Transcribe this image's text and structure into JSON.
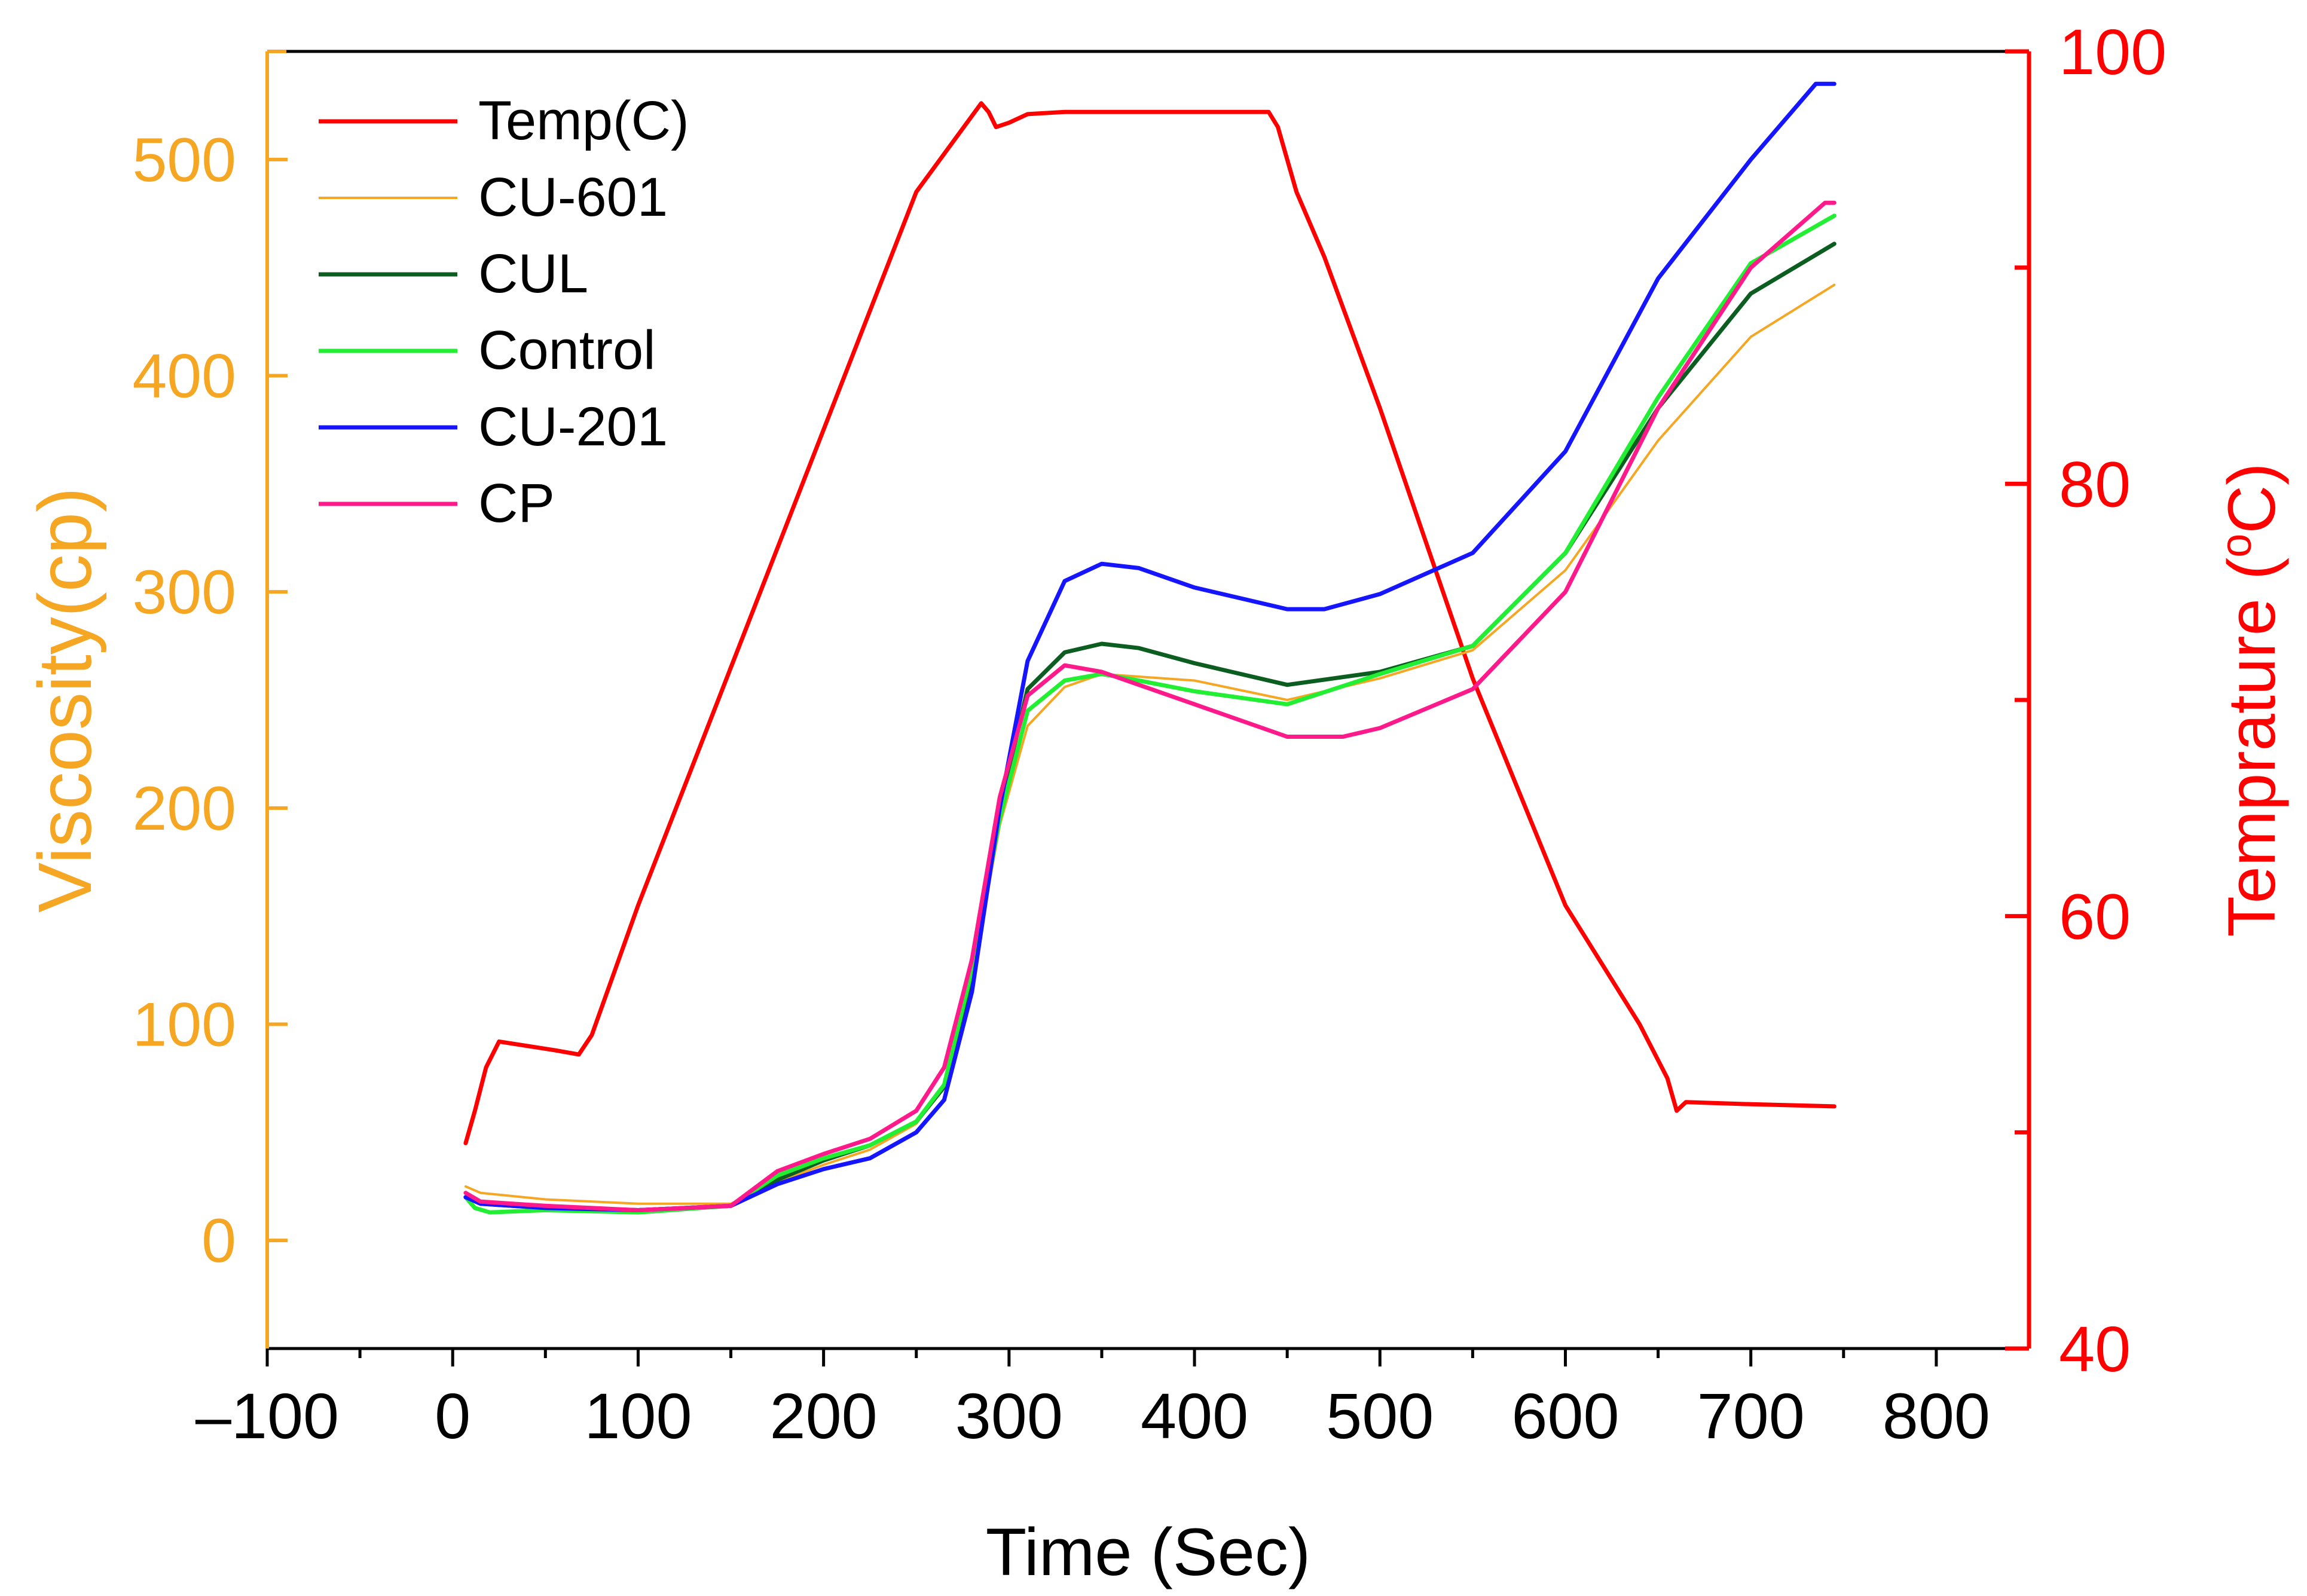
{
  "chart_data": {
    "type": "line",
    "title": "",
    "xlabel": "Time (Sec)",
    "ylabel_left": "Viscosity(cp)",
    "ylabel_right_prefix": "Temprature (",
    "ylabel_right_unit": "oC",
    "ylabel_right_suffix": ")",
    "xlim": [
      -100,
      850
    ],
    "ylim_left": [
      -50,
      550
    ],
    "ylim_right": [
      40,
      100
    ],
    "x_ticks": [
      -100,
      0,
      100,
      200,
      300,
      400,
      500,
      600,
      700,
      800
    ],
    "x_tick_labels": [
      "–100",
      "0",
      "100",
      "200",
      "300",
      "400",
      "500",
      "600",
      "700",
      "800"
    ],
    "y_left_ticks": [
      0,
      100,
      200,
      300,
      400,
      500
    ],
    "y_left_tick_labels": [
      "0",
      "100",
      "200",
      "300",
      "400",
      "500"
    ],
    "y_right_ticks": [
      40,
      60,
      80,
      100
    ],
    "y_right_tick_labels": [
      "40",
      "60",
      "80",
      "100"
    ],
    "legend_position": "top-left",
    "colors": {
      "left_axis": "#f5a623",
      "right_axis": "#ff0000",
      "frame": "#000000"
    },
    "series": [
      {
        "name": "Temp(C)",
        "axis": "right",
        "color": "#ff0000",
        "width": 7,
        "x": [
          7,
          12,
          18,
          25,
          40,
          55,
          68,
          75,
          100,
          150,
          200,
          250,
          285,
          289,
          293,
          300,
          310,
          330,
          370,
          420,
          440,
          445,
          455,
          470,
          500,
          550,
          600,
          640,
          655,
          660,
          665,
          700,
          745
        ],
        "y": [
          49.5,
          51,
          53,
          54.2,
          54,
          53.8,
          53.6,
          54.5,
          60.5,
          71.5,
          82.5,
          93.5,
          97.6,
          97.2,
          96.5,
          96.7,
          97.1,
          97.2,
          97.2,
          97.2,
          97.2,
          96.5,
          93.5,
          90.5,
          83.5,
          71,
          60.5,
          55,
          52.5,
          51,
          51.4,
          51.3,
          51.2
        ]
      },
      {
        "name": "CU-601",
        "axis": "left",
        "color": "#f5a623",
        "width": 4,
        "x": [
          7,
          15,
          50,
          100,
          150,
          175,
          200,
          225,
          250,
          265,
          280,
          295,
          310,
          330,
          350,
          400,
          450,
          500,
          550,
          600,
          650,
          700,
          745
        ],
        "y": [
          25,
          22,
          19,
          17,
          17,
          27,
          35,
          42,
          54,
          72,
          120,
          192,
          238,
          256,
          262,
          259,
          250,
          260,
          273,
          310,
          370,
          418,
          442
        ]
      },
      {
        "name": "CUL",
        "axis": "left",
        "color": "#0b5e1f",
        "width": 7,
        "x": [
          7,
          15,
          50,
          100,
          150,
          175,
          200,
          225,
          250,
          265,
          280,
          295,
          310,
          330,
          350,
          370,
          400,
          450,
          500,
          550,
          600,
          650,
          700,
          745
        ],
        "y": [
          20,
          17,
          15,
          14,
          16,
          28,
          37,
          44,
          55,
          71,
          120,
          200,
          255,
          272,
          276,
          274,
          267,
          257,
          263,
          275,
          318,
          385,
          438,
          461
        ]
      },
      {
        "name": "Control",
        "axis": "left",
        "color": "#22ee33",
        "width": 7,
        "x": [
          7,
          12,
          20,
          50,
          100,
          150,
          175,
          200,
          225,
          250,
          265,
          280,
          295,
          310,
          330,
          350,
          370,
          400,
          450,
          500,
          550,
          600,
          650,
          700,
          745
        ],
        "y": [
          20,
          15,
          13,
          14,
          13,
          16,
          30,
          38,
          44,
          55,
          72,
          125,
          195,
          245,
          259,
          262,
          259,
          254,
          248,
          262,
          275,
          318,
          390,
          452,
          474
        ]
      },
      {
        "name": "CU-201",
        "axis": "left",
        "color": "#1515ff",
        "width": 7,
        "x": [
          7,
          15,
          50,
          100,
          150,
          175,
          200,
          225,
          250,
          265,
          280,
          295,
          310,
          330,
          350,
          370,
          400,
          450,
          470,
          500,
          550,
          600,
          650,
          700,
          735,
          745
        ],
        "y": [
          20,
          17,
          15,
          14,
          16,
          26,
          33,
          38,
          50,
          65,
          115,
          200,
          268,
          305,
          313,
          311,
          302,
          292,
          292,
          299,
          318,
          365,
          445,
          500,
          535,
          535
        ]
      },
      {
        "name": "CP",
        "axis": "left",
        "color": "#ff1a8c",
        "width": 7,
        "x": [
          7,
          15,
          50,
          100,
          150,
          175,
          200,
          225,
          250,
          265,
          280,
          295,
          310,
          330,
          350,
          400,
          450,
          480,
          500,
          550,
          600,
          650,
          700,
          740,
          745
        ],
        "y": [
          22,
          18,
          16,
          14,
          16,
          32,
          40,
          47,
          60,
          80,
          130,
          205,
          252,
          266,
          263,
          248,
          233,
          233,
          237,
          255,
          300,
          385,
          450,
          480,
          480
        ]
      }
    ]
  }
}
